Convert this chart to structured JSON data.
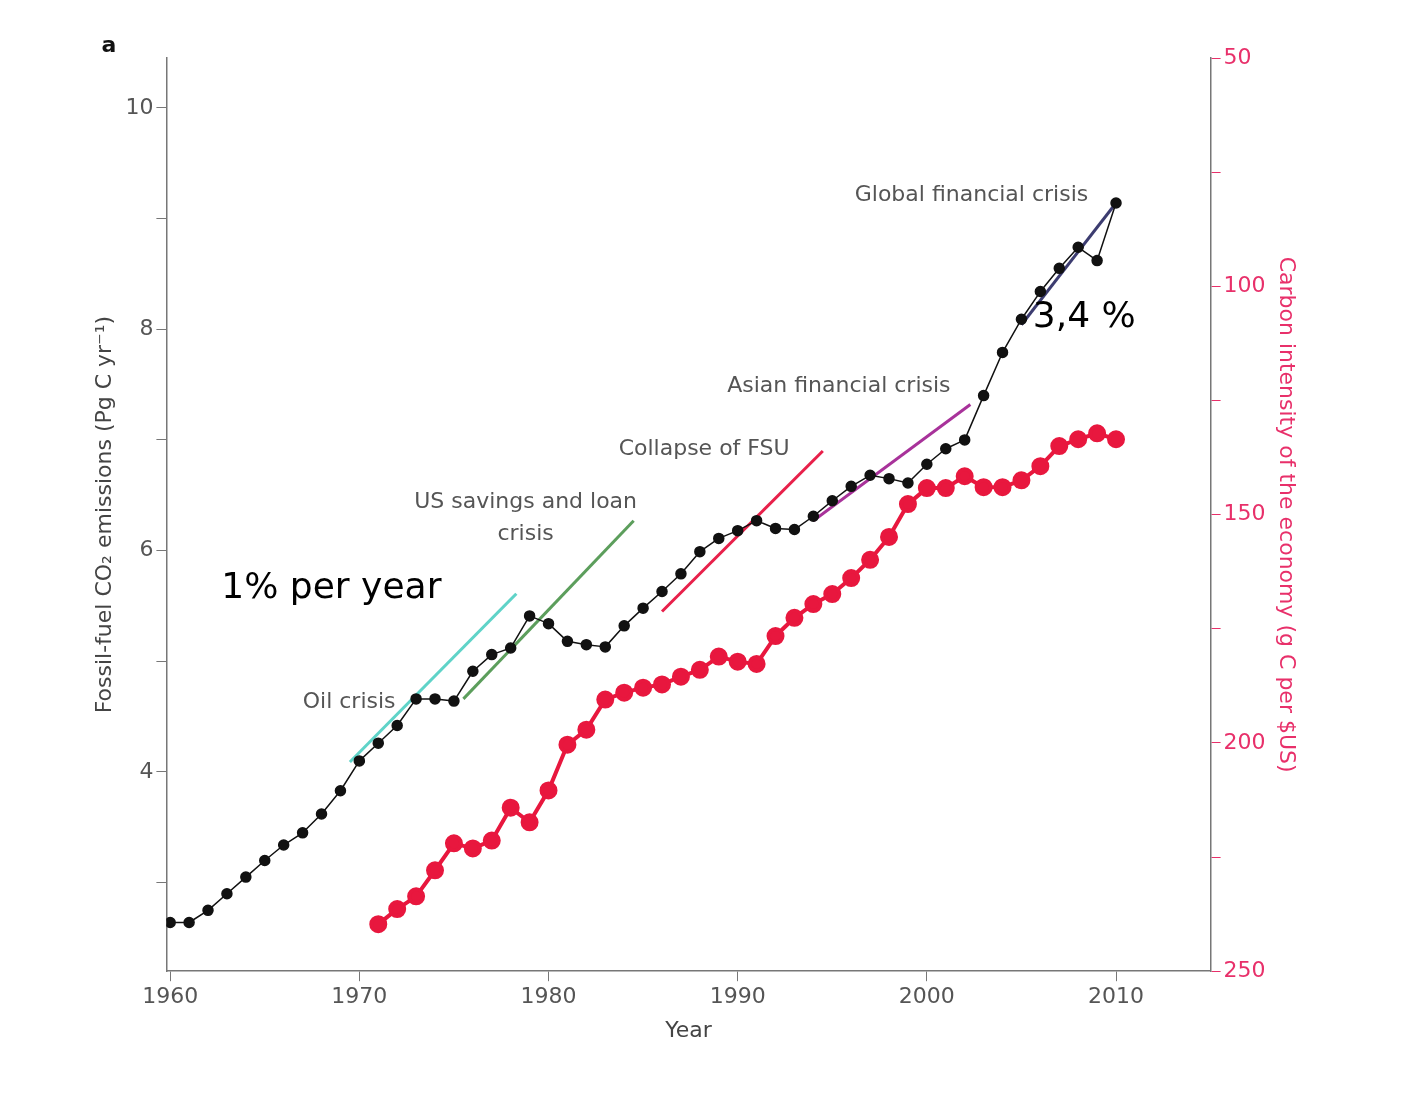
{
  "chart_data": {
    "type": "line",
    "xlabel": "Year",
    "ylabel": "Fossil-fuel CO₂ emissions (Pg C yr⁻¹)",
    "y2label": "Carbon intensity of the economy (g C per $US)",
    "xlim": [
      1959.8,
      2015
    ],
    "xticks": [
      1960,
      1970,
      1980,
      1990,
      2000,
      2010
    ],
    "ylim": [
      2.2,
      10.45
    ],
    "yticks": [
      {
        "value": 3,
        "label": null
      },
      4,
      {
        "value": 5,
        "label": null
      },
      6,
      {
        "value": 7,
        "label": null
      },
      8,
      {
        "value": 9,
        "label": null
      },
      10
    ],
    "y2lim": [
      250,
      50
    ],
    "y2ticks": [
      50,
      {
        "value": 75,
        "label": null
      },
      100,
      {
        "value": 125,
        "label": null
      },
      150,
      {
        "value": 175,
        "label": null
      },
      200,
      {
        "value": 225,
        "label": null
      },
      250
    ],
    "grid": false,
    "legend": false,
    "marker": "circle",
    "series": [
      {
        "color": "#111111",
        "x": [
          1960,
          1961,
          1962,
          1963,
          1964,
          1965,
          1966,
          1967,
          1968,
          1969,
          1970,
          1971,
          1972,
          1973,
          1974,
          1975,
          1976,
          1977,
          1978,
          1979,
          1980,
          1981,
          1982,
          1983,
          1984,
          1985,
          1986,
          1987,
          1988,
          1989,
          1990,
          1991,
          1992,
          1993,
          1994,
          1995,
          1996,
          1997,
          1998,
          1999,
          2000,
          2001,
          2002,
          2003,
          2004,
          2005,
          2006,
          2007,
          2008,
          2009,
          2010
        ],
        "values": [
          2.64,
          2.64,
          2.75,
          2.9,
          3.05,
          3.2,
          3.34,
          3.45,
          3.62,
          3.83,
          4.1,
          4.26,
          4.42,
          4.66,
          4.66,
          4.64,
          4.91,
          5.06,
          5.12,
          5.41,
          5.34,
          5.18,
          5.15,
          5.13,
          5.32,
          5.48,
          5.63,
          5.79,
          5.99,
          6.11,
          6.18,
          6.27,
          6.2,
          6.19,
          6.31,
          6.45,
          6.58,
          6.68,
          6.65,
          6.61,
          6.78,
          6.92,
          7.0,
          7.4,
          7.79,
          8.09,
          8.34,
          8.55,
          8.74,
          8.62,
          9.14
        ]
      },
      {
        "color": "#e8173e",
        "axis": "y2",
        "x": [
          1971,
          1972,
          1973,
          1974,
          1975,
          1976,
          1977,
          1978,
          1979,
          1980,
          1981,
          1982,
          1983,
          1984,
          1985,
          1986,
          1987,
          1988,
          1989,
          1990,
          1991,
          1992,
          1993,
          1994,
          1995,
          1996,
          1997,
          1998,
          1999,
          2000,
          2001,
          2002,
          2003,
          2004,
          2005,
          2006,
          2007,
          2008,
          2009,
          2010
        ],
        "values": [
          239.7,
          236.4,
          233.6,
          227.9,
          222.0,
          223.1,
          221.4,
          214.2,
          217.4,
          210.4,
          200.4,
          197.1,
          190.5,
          189.0,
          187.9,
          187.2,
          185.5,
          184.0,
          181.1,
          182.2,
          182.7,
          176.6,
          172.6,
          169.6,
          167.4,
          163.9,
          159.9,
          154.9,
          147.7,
          144.2,
          144.2,
          141.6,
          144.0,
          144.0,
          142.5,
          139.4,
          135.0,
          133.5,
          132.2,
          133.5
        ]
      },
      {
        "type": "line",
        "marker": "none",
        "color": "#5fd3c8",
        "x": [
          1969.5,
          1978.3
        ],
        "values": [
          4.09,
          5.61
        ]
      },
      {
        "type": "line",
        "marker": "none",
        "color": "#5c9e5c",
        "x": [
          1975.5,
          1984.5
        ],
        "values": [
          4.66,
          6.27
        ]
      },
      {
        "type": "line",
        "marker": "none",
        "color": "#e8204a",
        "x": [
          1986,
          1994.5
        ],
        "values": [
          5.45,
          6.9
        ]
      },
      {
        "type": "line",
        "marker": "none",
        "color": "#a8329a",
        "x": [
          1994,
          2002.3
        ],
        "values": [
          6.27,
          7.32
        ]
      },
      {
        "type": "line",
        "marker": "none",
        "color": "#3c3c70",
        "x": [
          2005,
          2010
        ],
        "values": [
          8.04,
          9.14
        ]
      }
    ],
    "annotations": [
      "a",
      "Oil crisis",
      "US savings and loan crisis",
      "Collapse of FSU",
      "Asian financial crisis",
      "Global financial crisis",
      "1% per year",
      "3,4 %"
    ]
  }
}
